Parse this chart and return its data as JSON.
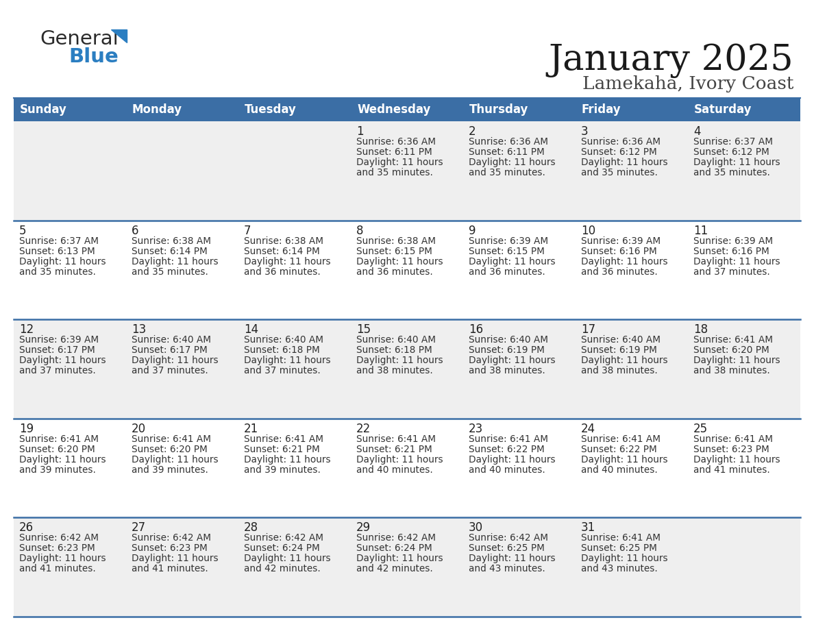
{
  "title": "January 2025",
  "subtitle": "Lamekaha, Ivory Coast",
  "header_color": "#3B6EA5",
  "header_text_color": "#FFFFFF",
  "day_names": [
    "Sunday",
    "Monday",
    "Tuesday",
    "Wednesday",
    "Thursday",
    "Friday",
    "Saturday"
  ],
  "cell_bg_even": "#EFEFEF",
  "cell_bg_odd": "#FFFFFF",
  "row_line_color": "#3B6EA5",
  "text_color": "#333333",
  "day_num_color": "#222222",
  "calendar": [
    [
      {
        "day": "",
        "sunrise": "",
        "sunset": "",
        "daylight_h": "",
        "daylight_m": ""
      },
      {
        "day": "",
        "sunrise": "",
        "sunset": "",
        "daylight_h": "",
        "daylight_m": ""
      },
      {
        "day": "",
        "sunrise": "",
        "sunset": "",
        "daylight_h": "",
        "daylight_m": ""
      },
      {
        "day": "1",
        "sunrise": "6:36 AM",
        "sunset": "6:11 PM",
        "daylight_h": "11",
        "daylight_m": "35"
      },
      {
        "day": "2",
        "sunrise": "6:36 AM",
        "sunset": "6:11 PM",
        "daylight_h": "11",
        "daylight_m": "35"
      },
      {
        "day": "3",
        "sunrise": "6:36 AM",
        "sunset": "6:12 PM",
        "daylight_h": "11",
        "daylight_m": "35"
      },
      {
        "day": "4",
        "sunrise": "6:37 AM",
        "sunset": "6:12 PM",
        "daylight_h": "11",
        "daylight_m": "35"
      }
    ],
    [
      {
        "day": "5",
        "sunrise": "6:37 AM",
        "sunset": "6:13 PM",
        "daylight_h": "11",
        "daylight_m": "35"
      },
      {
        "day": "6",
        "sunrise": "6:38 AM",
        "sunset": "6:14 PM",
        "daylight_h": "11",
        "daylight_m": "35"
      },
      {
        "day": "7",
        "sunrise": "6:38 AM",
        "sunset": "6:14 PM",
        "daylight_h": "11",
        "daylight_m": "36"
      },
      {
        "day": "8",
        "sunrise": "6:38 AM",
        "sunset": "6:15 PM",
        "daylight_h": "11",
        "daylight_m": "36"
      },
      {
        "day": "9",
        "sunrise": "6:39 AM",
        "sunset": "6:15 PM",
        "daylight_h": "11",
        "daylight_m": "36"
      },
      {
        "day": "10",
        "sunrise": "6:39 AM",
        "sunset": "6:16 PM",
        "daylight_h": "11",
        "daylight_m": "36"
      },
      {
        "day": "11",
        "sunrise": "6:39 AM",
        "sunset": "6:16 PM",
        "daylight_h": "11",
        "daylight_m": "37"
      }
    ],
    [
      {
        "day": "12",
        "sunrise": "6:39 AM",
        "sunset": "6:17 PM",
        "daylight_h": "11",
        "daylight_m": "37"
      },
      {
        "day": "13",
        "sunrise": "6:40 AM",
        "sunset": "6:17 PM",
        "daylight_h": "11",
        "daylight_m": "37"
      },
      {
        "day": "14",
        "sunrise": "6:40 AM",
        "sunset": "6:18 PM",
        "daylight_h": "11",
        "daylight_m": "37"
      },
      {
        "day": "15",
        "sunrise": "6:40 AM",
        "sunset": "6:18 PM",
        "daylight_h": "11",
        "daylight_m": "38"
      },
      {
        "day": "16",
        "sunrise": "6:40 AM",
        "sunset": "6:19 PM",
        "daylight_h": "11",
        "daylight_m": "38"
      },
      {
        "day": "17",
        "sunrise": "6:40 AM",
        "sunset": "6:19 PM",
        "daylight_h": "11",
        "daylight_m": "38"
      },
      {
        "day": "18",
        "sunrise": "6:41 AM",
        "sunset": "6:20 PM",
        "daylight_h": "11",
        "daylight_m": "38"
      }
    ],
    [
      {
        "day": "19",
        "sunrise": "6:41 AM",
        "sunset": "6:20 PM",
        "daylight_h": "11",
        "daylight_m": "39"
      },
      {
        "day": "20",
        "sunrise": "6:41 AM",
        "sunset": "6:20 PM",
        "daylight_h": "11",
        "daylight_m": "39"
      },
      {
        "day": "21",
        "sunrise": "6:41 AM",
        "sunset": "6:21 PM",
        "daylight_h": "11",
        "daylight_m": "39"
      },
      {
        "day": "22",
        "sunrise": "6:41 AM",
        "sunset": "6:21 PM",
        "daylight_h": "11",
        "daylight_m": "40"
      },
      {
        "day": "23",
        "sunrise": "6:41 AM",
        "sunset": "6:22 PM",
        "daylight_h": "11",
        "daylight_m": "40"
      },
      {
        "day": "24",
        "sunrise": "6:41 AM",
        "sunset": "6:22 PM",
        "daylight_h": "11",
        "daylight_m": "40"
      },
      {
        "day": "25",
        "sunrise": "6:41 AM",
        "sunset": "6:23 PM",
        "daylight_h": "11",
        "daylight_m": "41"
      }
    ],
    [
      {
        "day": "26",
        "sunrise": "6:42 AM",
        "sunset": "6:23 PM",
        "daylight_h": "11",
        "daylight_m": "41"
      },
      {
        "day": "27",
        "sunrise": "6:42 AM",
        "sunset": "6:23 PM",
        "daylight_h": "11",
        "daylight_m": "41"
      },
      {
        "day": "28",
        "sunrise": "6:42 AM",
        "sunset": "6:24 PM",
        "daylight_h": "11",
        "daylight_m": "42"
      },
      {
        "day": "29",
        "sunrise": "6:42 AM",
        "sunset": "6:24 PM",
        "daylight_h": "11",
        "daylight_m": "42"
      },
      {
        "day": "30",
        "sunrise": "6:42 AM",
        "sunset": "6:25 PM",
        "daylight_h": "11",
        "daylight_m": "43"
      },
      {
        "day": "31",
        "sunrise": "6:41 AM",
        "sunset": "6:25 PM",
        "daylight_h": "11",
        "daylight_m": "43"
      },
      {
        "day": "",
        "sunrise": "",
        "sunset": "",
        "daylight_h": "",
        "daylight_m": ""
      }
    ]
  ]
}
